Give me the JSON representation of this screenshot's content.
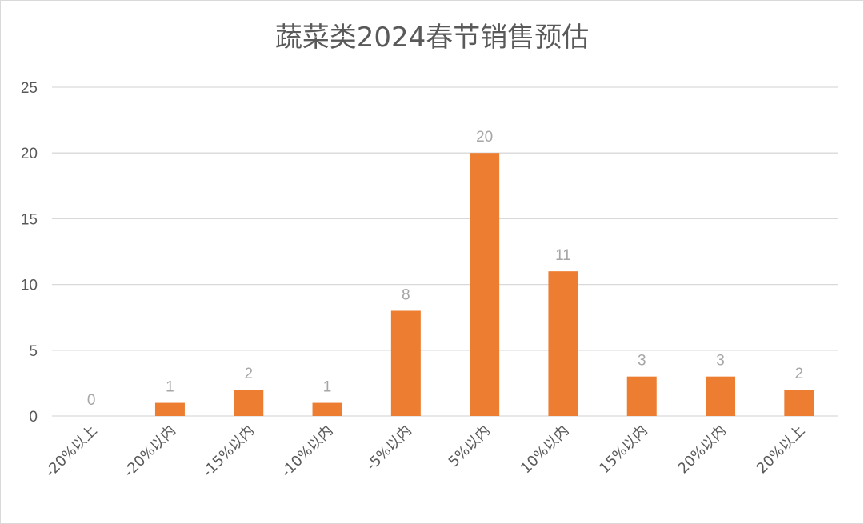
{
  "chart_data": {
    "type": "bar",
    "title": "蔬菜类2024春节销售预估",
    "categories": [
      "-20%以上",
      "-20%以内",
      "-15%以内",
      "-10%以内",
      "-5%以内",
      "5%以内",
      "10%以内",
      "15%以内",
      "20%以内",
      "20%以上"
    ],
    "values": [
      0,
      1,
      2,
      1,
      8,
      20,
      11,
      3,
      3,
      2
    ],
    "ylim": [
      0,
      25
    ],
    "yticks": [
      0,
      5,
      10,
      15,
      20,
      25
    ],
    "grid": true,
    "show_data_labels": true,
    "colors": {
      "bar": "#ED7D31",
      "data_label": "#A6A6A6",
      "grid": "#D9D9D9",
      "text": "#595959"
    }
  }
}
